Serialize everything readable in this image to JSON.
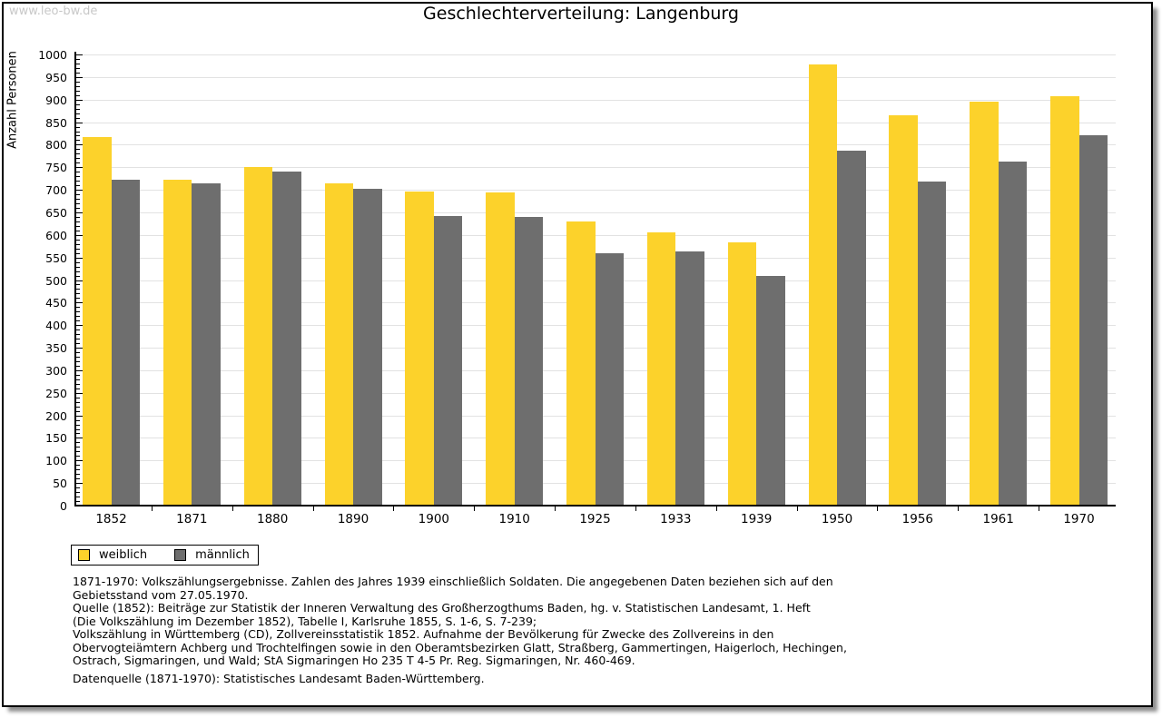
{
  "watermark": "www.leo-bw.de",
  "title": "Geschlechterverteilung: Langenburg",
  "legend": {
    "items": [
      {
        "label": "weiblich",
        "color": "#fcd22b"
      },
      {
        "label": "männlich",
        "color": "#6e6e6e"
      }
    ]
  },
  "footnote_lines": [
    "1871-1970: Volkszählungsergebnisse. Zahlen des Jahres 1939 einschließlich Soldaten. Die angegebenen Daten beziehen sich auf den",
    "Gebietsstand vom 27.05.1970.",
    "Quelle (1852): Beiträge zur Statistik der Inneren Verwaltung des Großherzogthums Baden, hg. v. Statistischen Landesamt, 1. Heft",
    "(Die Volkszählung im Dezember 1852), Tabelle I, Karlsruhe 1855, S. 1-6, S. 7-239;",
    "Volkszählung in Württemberg (CD), Zollvereinsstatistik 1852. Aufnahme der Bevölkerung für Zwecke des Zollvereins in den",
    "Obervogteiämtern Achberg und Trochtelfingen sowie in den Oberamtsbezirken Glatt, Straßberg, Gammertingen, Haigerloch, Hechingen,",
    "Ostrach, Sigmaringen, und Wald; StA Sigmaringen Ho 235 T 4-5 Pr. Reg. Sigmaringen, Nr. 460-469."
  ],
  "source_line": "Datenquelle (1871-1970): Statistisches Landesamt Baden-Württemberg.",
  "colors": {
    "weiblich": "#fcd22b",
    "männlich": "#6e6e6e",
    "gridline": "#e2e2e2",
    "watermark_text": "#c8c8c8",
    "axis": "#000000"
  },
  "chart_data": {
    "type": "bar",
    "title": "Geschlechterverteilung: Langenburg",
    "xlabel": "",
    "ylabel": "Anzahl Personen",
    "ylim": [
      0,
      1000
    ],
    "y_tick_step": 50,
    "y_minor_tick_step": 10,
    "grid": true,
    "legend_position": "bottom-left",
    "categories": [
      "1852",
      "1871",
      "1880",
      "1890",
      "1900",
      "1910",
      "1925",
      "1933",
      "1939",
      "1950",
      "1956",
      "1961",
      "1970"
    ],
    "series": [
      {
        "name": "weiblich",
        "color": "#fcd22b",
        "values": [
          817,
          723,
          750,
          714,
          696,
          694,
          630,
          606,
          584,
          978,
          866,
          895,
          908
        ]
      },
      {
        "name": "männlich",
        "color": "#6e6e6e",
        "values": [
          723,
          715,
          741,
          703,
          642,
          639,
          560,
          563,
          510,
          787,
          719,
          763,
          820
        ]
      }
    ]
  }
}
